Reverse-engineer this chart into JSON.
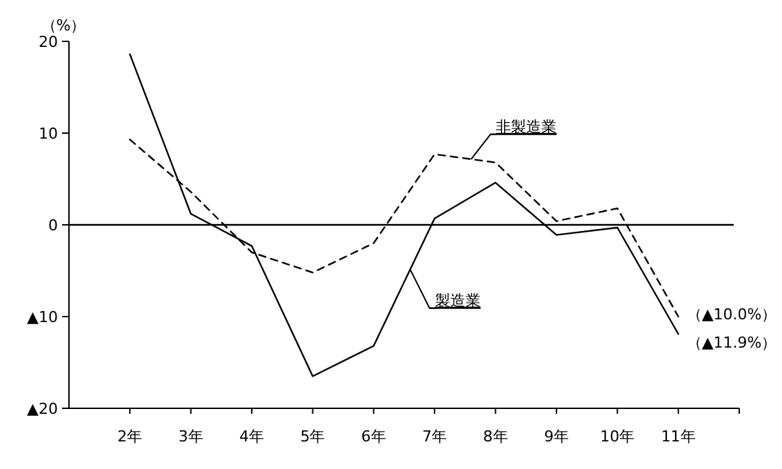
{
  "chart_data": {
    "type": "line",
    "ylabel": "（%）",
    "categories": [
      "2年",
      "3年",
      "4年",
      "5年",
      "6年",
      "7年",
      "8年",
      "9年",
      "10年",
      "11年"
    ],
    "series": [
      {
        "name": "製造業",
        "color": "#000000",
        "line_style": "solid",
        "values": [
          18.6,
          1.2,
          -2.3,
          -16.5,
          -13.2,
          0.7,
          4.6,
          -1.1,
          -0.3,
          -11.9
        ]
      },
      {
        "name": "非製造業",
        "color": "#000000",
        "line_style": "dashed",
        "values": [
          9.3,
          3.6,
          -3.0,
          -5.2,
          -2.0,
          7.7,
          6.8,
          0.4,
          1.8,
          -10.0
        ]
      }
    ],
    "ylim": [
      -20,
      20
    ],
    "yticks": [
      20,
      10,
      0,
      {
        "value": -10,
        "label": "▲10"
      },
      {
        "value": -20,
        "label": "▲20"
      }
    ],
    "ref_lines": [
      {
        "axis": "y",
        "value": 0,
        "color": "#000000"
      }
    ],
    "annotations": [
      {
        "text": "（▲10.0%）",
        "x": "11年",
        "y": -10.0
      },
      {
        "text": "（▲11.9%）",
        "x": "11年",
        "y": -11.9
      }
    ],
    "grid": false,
    "marker": "none"
  }
}
